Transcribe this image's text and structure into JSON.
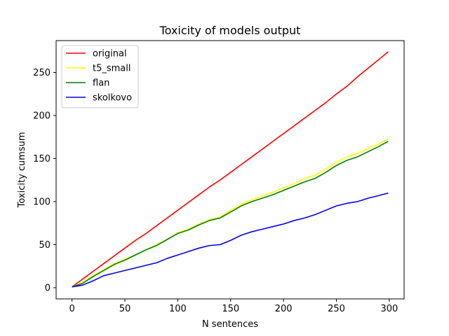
{
  "chart_data": {
    "type": "line",
    "title": "Toxicity of models output",
    "xlabel": "N sentences",
    "ylabel": "Toxicity cumsum",
    "xlim": [
      -15,
      314
    ],
    "ylim": [
      -13,
      287
    ],
    "xticks": [
      0,
      50,
      100,
      150,
      200,
      250,
      300
    ],
    "yticks": [
      0,
      50,
      100,
      150,
      200,
      250
    ],
    "grid": false,
    "legend_position": "top-left",
    "series": [
      {
        "name": "original",
        "color": "#ff0000",
        "x": [
          0,
          10,
          20,
          30,
          40,
          50,
          60,
          70,
          80,
          90,
          100,
          110,
          120,
          130,
          140,
          150,
          160,
          170,
          180,
          190,
          200,
          210,
          220,
          230,
          240,
          250,
          260,
          270,
          280,
          290,
          299
        ],
        "y": [
          1,
          10,
          19,
          28,
          37,
          46,
          55,
          63,
          72,
          81,
          90,
          99,
          108,
          117,
          125,
          134,
          143,
          152,
          161,
          170,
          179,
          188,
          197,
          206,
          215,
          225,
          234,
          245,
          255,
          265,
          274
        ]
      },
      {
        "name": "t5_small",
        "color": "#ffff00",
        "x": [
          0,
          10,
          20,
          30,
          40,
          50,
          60,
          70,
          80,
          90,
          100,
          110,
          120,
          130,
          140,
          150,
          160,
          170,
          180,
          190,
          200,
          210,
          220,
          230,
          240,
          250,
          260,
          270,
          280,
          290,
          299
        ],
        "y": [
          1,
          6,
          14,
          21,
          28,
          33,
          38,
          44,
          50,
          56,
          64,
          68,
          74,
          79,
          82,
          90,
          97,
          102,
          107,
          111,
          116,
          121,
          127,
          131,
          138,
          146,
          152,
          156,
          162,
          167,
          173
        ]
      },
      {
        "name": "flan",
        "color": "#008000",
        "x": [
          0,
          10,
          20,
          30,
          40,
          50,
          60,
          70,
          80,
          90,
          100,
          110,
          120,
          130,
          140,
          150,
          160,
          170,
          180,
          190,
          200,
          210,
          220,
          230,
          240,
          250,
          260,
          270,
          280,
          290,
          299
        ],
        "y": [
          1,
          5,
          13,
          20,
          27,
          32,
          38,
          44,
          49,
          56,
          63,
          67,
          73,
          78,
          81,
          88,
          95,
          100,
          104,
          108,
          113,
          118,
          123,
          127,
          134,
          142,
          148,
          152,
          158,
          164,
          170
        ]
      },
      {
        "name": "skolkovo",
        "color": "#0000ff",
        "x": [
          0,
          10,
          20,
          30,
          40,
          50,
          60,
          70,
          80,
          90,
          100,
          110,
          120,
          130,
          140,
          150,
          160,
          170,
          180,
          190,
          200,
          210,
          220,
          230,
          240,
          250,
          260,
          270,
          280,
          290,
          299
        ],
        "y": [
          1,
          3,
          8,
          14,
          17,
          20,
          23,
          26,
          29,
          34,
          38,
          42,
          46,
          49,
          50,
          55,
          61,
          65,
          68,
          71,
          74,
          78,
          81,
          85,
          90,
          95,
          98,
          100,
          104,
          107,
          110
        ]
      }
    ]
  }
}
